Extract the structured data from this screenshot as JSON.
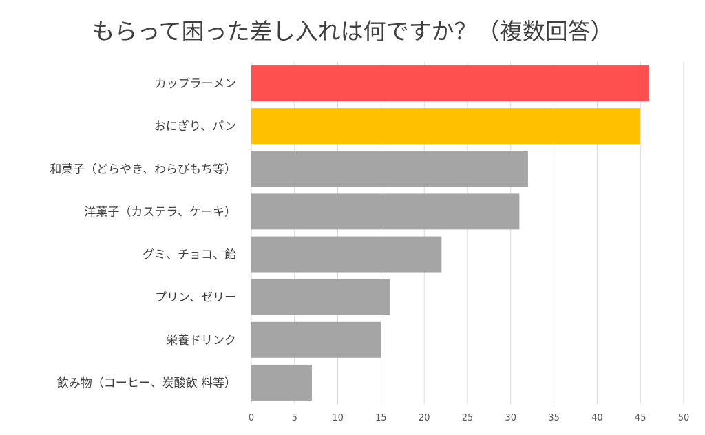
{
  "chart_data": {
    "type": "bar",
    "orientation": "horizontal",
    "title": "もらって困った差し入れは何ですか？（複数回答）",
    "categories": [
      "カップラーメン",
      "おにぎり、パン",
      "和菓子（どらやき、わらびもち等）",
      "洋菓子（カステラ、ケーキ）",
      "グミ、チョコ、飴",
      "プリン、ゼリー",
      "栄養ドリンク",
      "飲み物（コーヒー、炭酸飲 料等）"
    ],
    "values": [
      46,
      45,
      32,
      31,
      22,
      16,
      15,
      7
    ],
    "colors": [
      "#FF5050",
      "#FFC000",
      "#A5A5A5",
      "#A5A5A5",
      "#A5A5A5",
      "#A5A5A5",
      "#A5A5A5",
      "#A5A5A5"
    ],
    "xlim": [
      0,
      50
    ],
    "xticks": [
      "0",
      "5",
      "10",
      "15",
      "20",
      "25",
      "30",
      "35",
      "40",
      "45",
      "50"
    ],
    "grid": true,
    "xlabel": "",
    "ylabel": "",
    "legend": "none"
  }
}
